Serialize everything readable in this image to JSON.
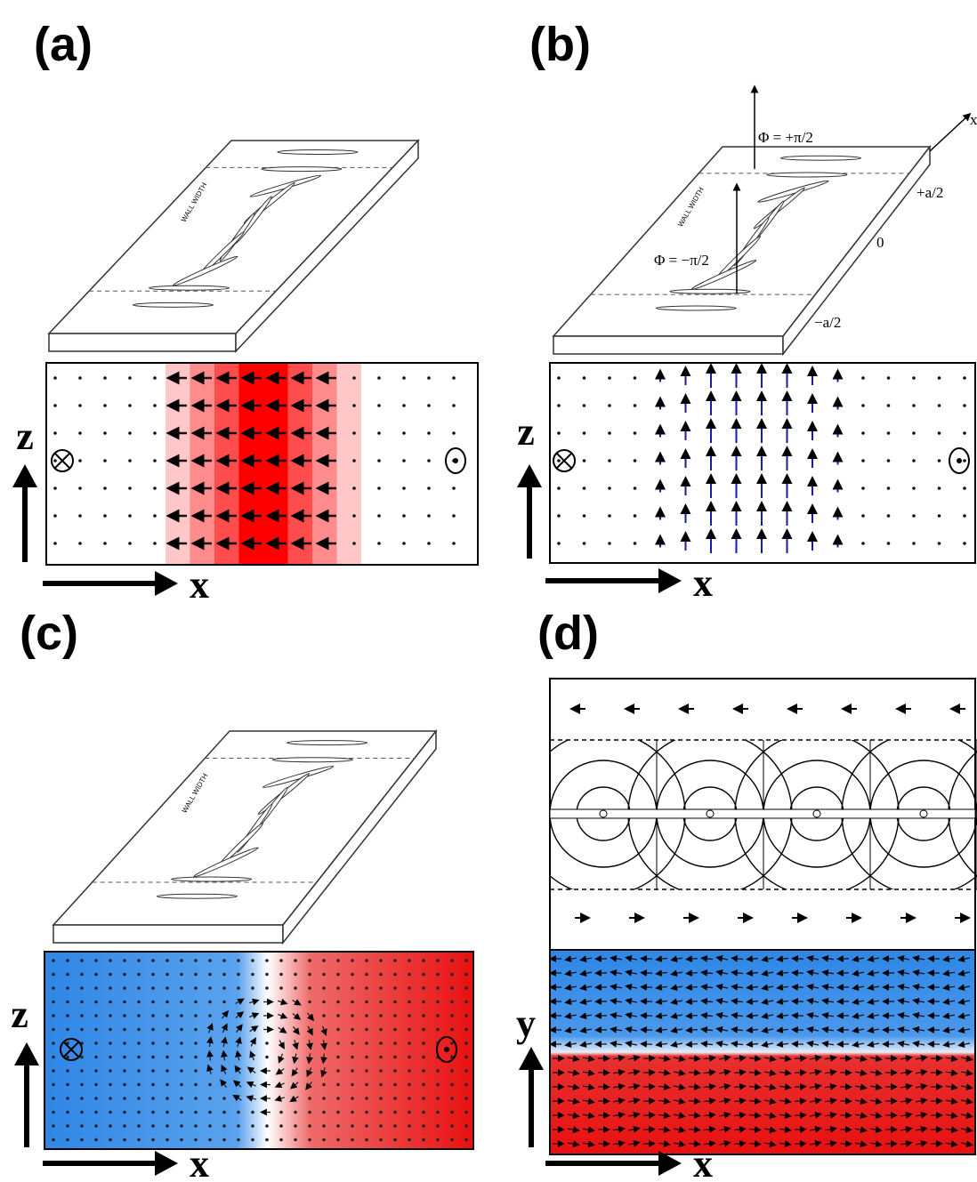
{
  "panels": [
    {
      "label": "(a)",
      "axes": {
        "vertical": "z",
        "horizontal": "x"
      },
      "slab_label": "WALL WIDTH"
    },
    {
      "label": "(b)",
      "axes": {
        "vertical": "z",
        "horizontal": "x"
      },
      "slab_label": "WALL WIDTH",
      "annotations": {
        "phi_plus": "Φ = +π/2",
        "phi_minus": "Φ = −π/2",
        "plus_half": "+a/2",
        "zero": "0",
        "minus_half": "−a/2",
        "axis": "x"
      }
    },
    {
      "label": "(c)",
      "axes": {
        "vertical": "z",
        "horizontal": "x"
      },
      "slab_label": "WALL WIDTH"
    },
    {
      "label": "(d)",
      "axes": {
        "vertical": "y",
        "horizontal": "x"
      }
    }
  ]
}
